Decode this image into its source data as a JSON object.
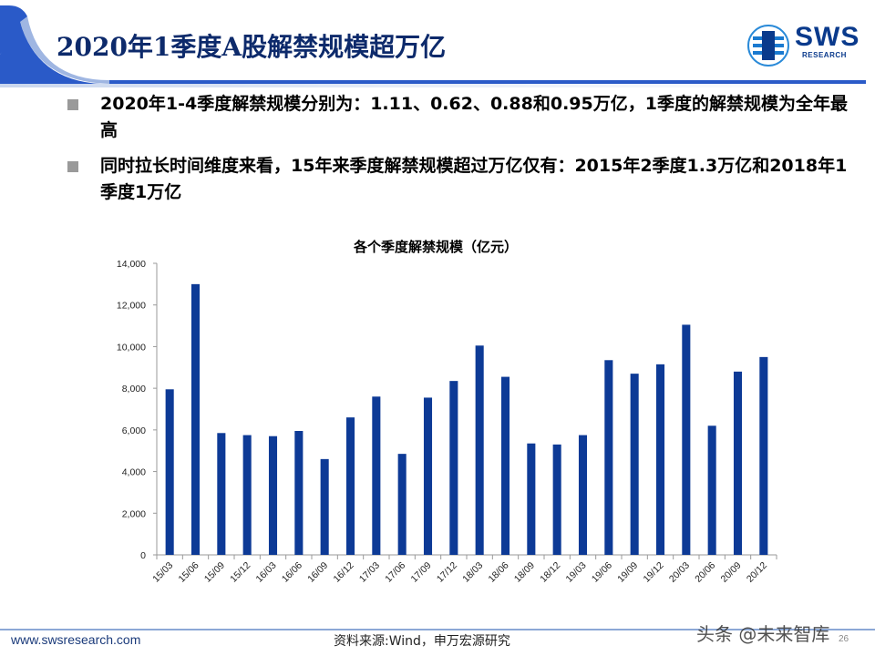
{
  "slide": {
    "title": "2020年1季度A股解禁规模超万亿",
    "bullets": [
      "2020年1-4季度解禁规模分别为：1.11、0.62、0.88和0.95万亿，1季度的解禁规模为全年最高",
      "同时拉长时间维度来看，15年来季度解禁规模超过万亿仅有：2015年2季度1.3万亿和2018年1季度1万亿"
    ]
  },
  "logo": {
    "text": "SWS",
    "sub": "RESEARCH"
  },
  "colors": {
    "bar": "#0d3a96",
    "title": "#0d2a6b",
    "accent": "#2a5ac8"
  },
  "chart_data": {
    "type": "bar",
    "title": "各个季度解禁规模（亿元）",
    "categories": [
      "15/03",
      "15/06",
      "15/09",
      "15/12",
      "16/03",
      "16/06",
      "16/09",
      "16/12",
      "17/03",
      "17/06",
      "17/09",
      "17/12",
      "18/03",
      "18/06",
      "18/09",
      "18/12",
      "19/03",
      "19/06",
      "19/09",
      "19/12",
      "20/03",
      "20/06",
      "20/09",
      "20/12"
    ],
    "values": [
      7950,
      13000,
      5850,
      5750,
      5700,
      5950,
      4600,
      6600,
      7600,
      4850,
      7550,
      8350,
      10050,
      8550,
      5350,
      5300,
      5750,
      9350,
      8700,
      9150,
      11050,
      6200,
      8800,
      9500
    ],
    "ylim": [
      0,
      14000
    ],
    "yticks": [
      "0",
      "2,000",
      "4,000",
      "6,000",
      "8,000",
      "10,000",
      "12,000",
      "14,000"
    ],
    "grid": false,
    "legend": "none"
  },
  "footer": {
    "url": "www.swsresearch.com",
    "source": "资料来源:Wind，申万宏源研究",
    "page": "26",
    "watermark": "头条 @未来智库"
  }
}
